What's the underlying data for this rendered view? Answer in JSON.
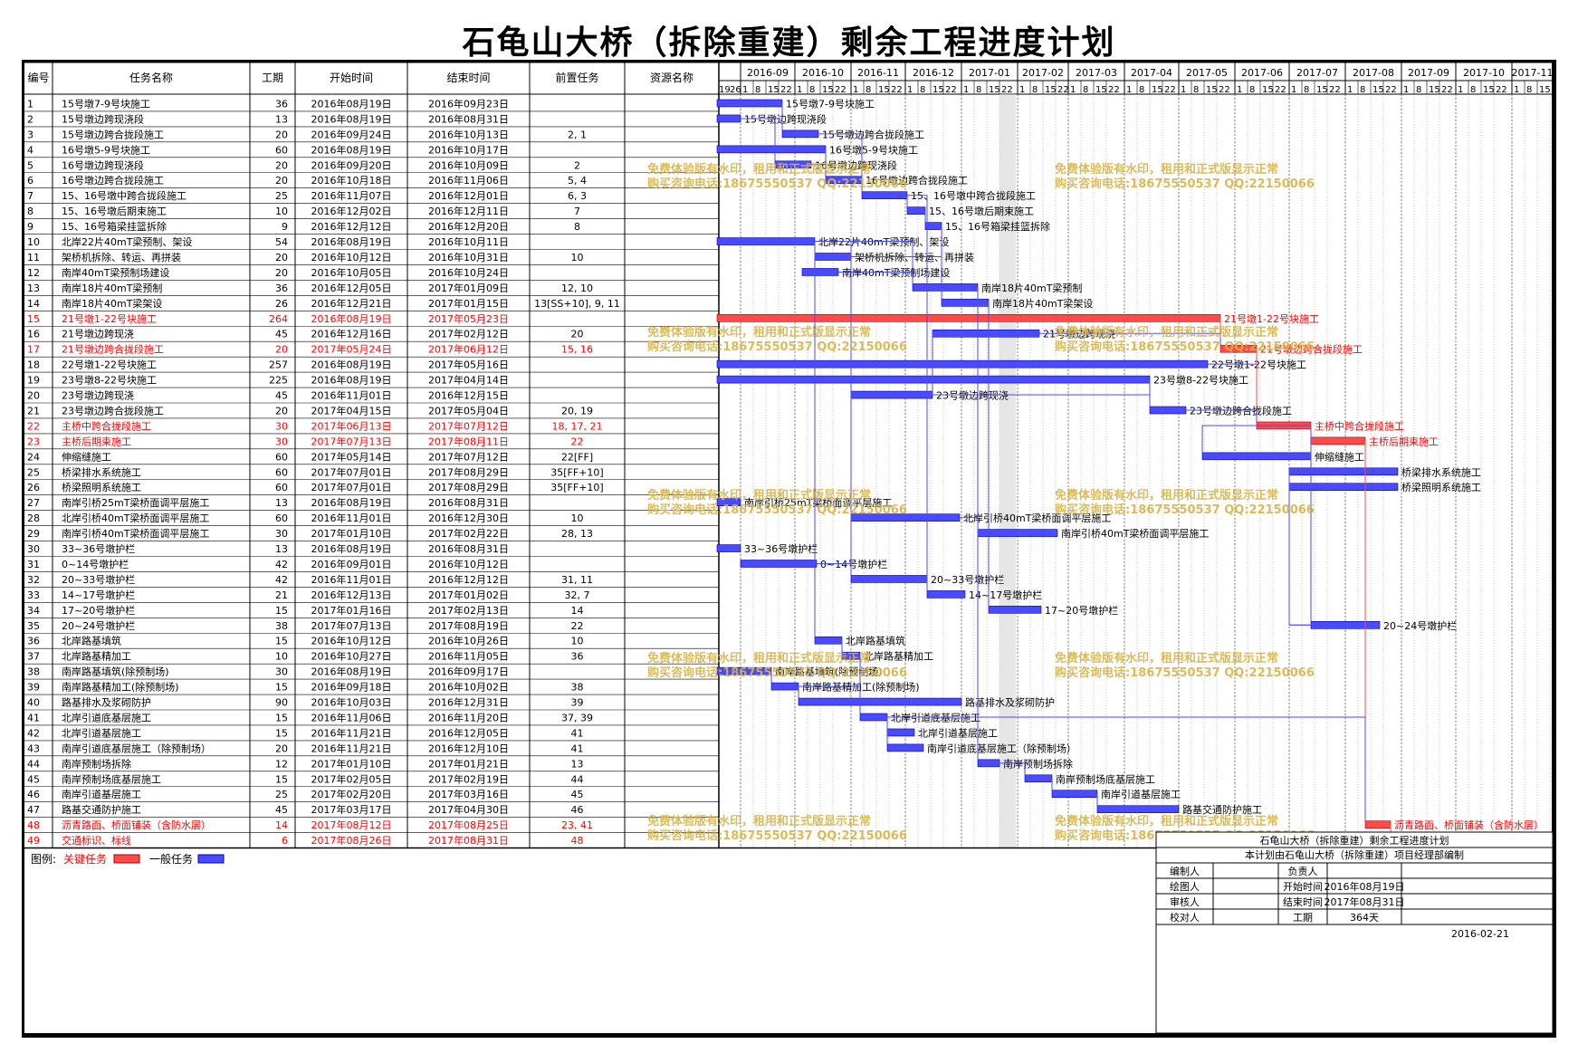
{
  "title": "石龟山大桥（拆除重建）剩余工程进度计划",
  "columns": [
    "编号",
    "任务名称",
    "工期",
    "开始时间",
    "结束时间",
    "前置任务",
    "资源名称"
  ],
  "months": [
    "2016-09",
    "2016-10",
    "2016-11",
    "2016-12",
    "2017-01",
    "2017-02",
    "2017-03",
    "2017-04",
    "2017-05",
    "2017-06",
    "2017-07",
    "2017-08",
    "2017-09",
    "2017-10",
    "2017-11"
  ],
  "first_week_labels": [
    "19",
    "26"
  ],
  "week_labels": [
    "1",
    "8",
    "15",
    "22"
  ],
  "watermark": {
    "line1": "免费体验版有水印，租用和正式版显示正常",
    "line2": "购买咨询电话:18675550537 QQ:22150066",
    "color": "#d8b448"
  },
  "colors": {
    "normal": "#4a4aff",
    "critical": "#ff4a4a",
    "normal_text": "#000000",
    "critical_text": "#ff0000"
  },
  "tasks": [
    {
      "id": "1",
      "name": "15号墩7-9号块施工",
      "dur": "36",
      "start": "2016年08月19日",
      "end": "2016年09月23日",
      "pred": "",
      "critical": false
    },
    {
      "id": "2",
      "name": "15号墩边跨现浇段",
      "dur": "13",
      "start": "2016年08月19日",
      "end": "2016年08月31日",
      "pred": "",
      "critical": false
    },
    {
      "id": "3",
      "name": "15号墩边跨合拢段施工",
      "dur": "20",
      "start": "2016年09月24日",
      "end": "2016年10月13日",
      "pred": "2, 1",
      "critical": false
    },
    {
      "id": "4",
      "name": "16号墩5-9号块施工",
      "dur": "60",
      "start": "2016年08月19日",
      "end": "2016年10月17日",
      "pred": "",
      "critical": false
    },
    {
      "id": "5",
      "name": "16号墩边跨现浇段",
      "dur": "20",
      "start": "2016年09月20日",
      "end": "2016年10月09日",
      "pred": "2",
      "critical": false
    },
    {
      "id": "6",
      "name": "16号墩边跨合拢段施工",
      "dur": "20",
      "start": "2016年10月18日",
      "end": "2016年11月06日",
      "pred": "5, 4",
      "critical": false
    },
    {
      "id": "7",
      "name": "15、16号墩中跨合拢段施工",
      "dur": "25",
      "start": "2016年11月07日",
      "end": "2016年12月01日",
      "pred": "6, 3",
      "critical": false
    },
    {
      "id": "8",
      "name": "15、16号墩后期束施工",
      "dur": "10",
      "start": "2016年12月02日",
      "end": "2016年12月11日",
      "pred": "7",
      "critical": false
    },
    {
      "id": "9",
      "name": "15、16号箱梁挂篮拆除",
      "dur": "9",
      "start": "2016年12月12日",
      "end": "2016年12月20日",
      "pred": "8",
      "critical": false
    },
    {
      "id": "10",
      "name": "北岸22片40mT梁预制、架设",
      "dur": "54",
      "start": "2016年08月19日",
      "end": "2016年10月11日",
      "pred": "",
      "critical": false
    },
    {
      "id": "11",
      "name": "架桥机拆除、转运、再拼装",
      "dur": "20",
      "start": "2016年10月12日",
      "end": "2016年10月31日",
      "pred": "10",
      "critical": false
    },
    {
      "id": "12",
      "name": "南岸40mT梁预制场建设",
      "dur": "20",
      "start": "2016年10月05日",
      "end": "2016年10月24日",
      "pred": "",
      "critical": false
    },
    {
      "id": "13",
      "name": "南岸18片40mT梁预制",
      "dur": "36",
      "start": "2016年12月05日",
      "end": "2017年01月09日",
      "pred": "12, 10",
      "critical": false
    },
    {
      "id": "14",
      "name": "南岸18片40mT梁架设",
      "dur": "26",
      "start": "2016年12月21日",
      "end": "2017年01月15日",
      "pred": "13[SS+10], 9, 11",
      "critical": false
    },
    {
      "id": "15",
      "name": "21号墩1-22号块施工",
      "dur": "264",
      "start": "2016年08月19日",
      "end": "2017年05月23日",
      "pred": "",
      "critical": true
    },
    {
      "id": "16",
      "name": "21号墩边跨现浇",
      "dur": "45",
      "start": "2016年12月16日",
      "end": "2017年02月12日",
      "pred": "20",
      "critical": false
    },
    {
      "id": "17",
      "name": "21号墩边跨合拢段施工",
      "dur": "20",
      "start": "2017年05月24日",
      "end": "2017年06月12日",
      "pred": "15, 16",
      "critical": true
    },
    {
      "id": "18",
      "name": "22号墩1-22号块施工",
      "dur": "257",
      "start": "2016年08月19日",
      "end": "2017年05月16日",
      "pred": "",
      "critical": false
    },
    {
      "id": "19",
      "name": "23号墩8-22号块施工",
      "dur": "225",
      "start": "2016年08月19日",
      "end": "2017年04月14日",
      "pred": "",
      "critical": false
    },
    {
      "id": "20",
      "name": "23号墩边跨现浇",
      "dur": "45",
      "start": "2016年11月01日",
      "end": "2016年12月15日",
      "pred": "",
      "critical": false
    },
    {
      "id": "21",
      "name": "23号墩边跨合拢段施工",
      "dur": "20",
      "start": "2017年04月15日",
      "end": "2017年05月04日",
      "pred": "20, 19",
      "critical": false
    },
    {
      "id": "22",
      "name": "主桥中跨合拢段施工",
      "dur": "30",
      "start": "2017年06月13日",
      "end": "2017年07月12日",
      "pred": "18, 17, 21",
      "critical": true
    },
    {
      "id": "23",
      "name": "主桥后期束施工",
      "dur": "30",
      "start": "2017年07月13日",
      "end": "2017年08月11日",
      "pred": "22",
      "critical": true
    },
    {
      "id": "24",
      "name": "伸缩缝施工",
      "dur": "60",
      "start": "2017年05月14日",
      "end": "2017年07月12日",
      "pred": "22[FF]",
      "critical": false
    },
    {
      "id": "25",
      "name": "桥梁排水系统施工",
      "dur": "60",
      "start": "2017年07月01日",
      "end": "2017年08月29日",
      "pred": "35[FF+10]",
      "critical": false
    },
    {
      "id": "26",
      "name": "桥梁照明系统施工",
      "dur": "60",
      "start": "2017年07月01日",
      "end": "2017年08月29日",
      "pred": "35[FF+10]",
      "critical": false
    },
    {
      "id": "27",
      "name": "南岸引桥25mT梁桥面调平层施工",
      "dur": "13",
      "start": "2016年08月19日",
      "end": "2016年08月31日",
      "pred": "",
      "critical": false
    },
    {
      "id": "28",
      "name": "北岸引桥40mT梁桥面调平层施工",
      "dur": "60",
      "start": "2016年11月01日",
      "end": "2016年12月30日",
      "pred": "10",
      "critical": false
    },
    {
      "id": "29",
      "name": "南岸引桥40mT梁桥面调平层施工",
      "dur": "30",
      "start": "2017年01月10日",
      "end": "2017年02月22日",
      "pred": "28, 13",
      "critical": false
    },
    {
      "id": "30",
      "name": "33~36号墩护栏",
      "dur": "13",
      "start": "2016年08月19日",
      "end": "2016年08月31日",
      "pred": "",
      "critical": false
    },
    {
      "id": "31",
      "name": "0~14号墩护栏",
      "dur": "42",
      "start": "2016年09月01日",
      "end": "2016年10月12日",
      "pred": "",
      "critical": false
    },
    {
      "id": "32",
      "name": "20~33号墩护栏",
      "dur": "42",
      "start": "2016年11月01日",
      "end": "2016年12月12日",
      "pred": "31, 11",
      "critical": false
    },
    {
      "id": "33",
      "name": "14~17号墩护栏",
      "dur": "21",
      "start": "2016年12月13日",
      "end": "2017年01月02日",
      "pred": "32, 7",
      "critical": false
    },
    {
      "id": "34",
      "name": "17~20号墩护栏",
      "dur": "15",
      "start": "2017年01月16日",
      "end": "2017年02月13日",
      "pred": "14",
      "critical": false
    },
    {
      "id": "35",
      "name": "20~24号墩护栏",
      "dur": "38",
      "start": "2017年07月13日",
      "end": "2017年08月19日",
      "pred": "22",
      "critical": false
    },
    {
      "id": "36",
      "name": "北岸路基填筑",
      "dur": "15",
      "start": "2016年10月12日",
      "end": "2016年10月26日",
      "pred": "10",
      "critical": false
    },
    {
      "id": "37",
      "name": "北岸路基精加工",
      "dur": "10",
      "start": "2016年10月27日",
      "end": "2016年11月05日",
      "pred": "36",
      "critical": false
    },
    {
      "id": "38",
      "name": "南岸路基填筑(除预制场)",
      "dur": "30",
      "start": "2016年08月19日",
      "end": "2016年09月17日",
      "pred": "",
      "critical": false
    },
    {
      "id": "39",
      "name": "南岸路基精加工(除预制场)",
      "dur": "15",
      "start": "2016年09月18日",
      "end": "2016年10月02日",
      "pred": "38",
      "critical": false
    },
    {
      "id": "40",
      "name": "路基排水及浆砌防护",
      "dur": "90",
      "start": "2016年10月03日",
      "end": "2016年12月31日",
      "pred": "39",
      "critical": false
    },
    {
      "id": "41",
      "name": "北岸引道底基层施工",
      "dur": "15",
      "start": "2016年11月06日",
      "end": "2016年11月20日",
      "pred": "37, 39",
      "critical": false
    },
    {
      "id": "42",
      "name": "北岸引道基层施工",
      "dur": "15",
      "start": "2016年11月21日",
      "end": "2016年12月05日",
      "pred": "41",
      "critical": false
    },
    {
      "id": "43",
      "name": "南岸引道底基层施工（除预制场）",
      "dur": "20",
      "start": "2016年11月21日",
      "end": "2016年12月10日",
      "pred": "41",
      "critical": false
    },
    {
      "id": "44",
      "name": "南岸预制场拆除",
      "dur": "12",
      "start": "2017年01月10日",
      "end": "2017年01月21日",
      "pred": "13",
      "critical": false
    },
    {
      "id": "45",
      "name": "南岸预制场底基层施工",
      "dur": "15",
      "start": "2017年02月05日",
      "end": "2017年02月19日",
      "pred": "44",
      "critical": false
    },
    {
      "id": "46",
      "name": "南岸引道基层施工",
      "dur": "25",
      "start": "2017年02月20日",
      "end": "2017年03月16日",
      "pred": "45",
      "critical": false
    },
    {
      "id": "47",
      "name": "路基交通防护施工",
      "dur": "45",
      "start": "2017年03月17日",
      "end": "2017年04月30日",
      "pred": "46",
      "critical": false
    },
    {
      "id": "48",
      "name": "沥青路面、桥面铺装（含防水层）",
      "dur": "14",
      "start": "2017年08月12日",
      "end": "2017年08月25日",
      "pred": "23, 41",
      "critical": true
    },
    {
      "id": "49",
      "name": "交通标识、标线",
      "dur": "6",
      "start": "2017年08月26日",
      "end": "2017年08月31日",
      "pred": "48",
      "critical": true
    }
  ],
  "legend": {
    "label": "图例:",
    "critical": "关键任务",
    "normal": "一般任务"
  },
  "infobox": {
    "title": "石龟山大桥（拆除重建）剩余工程进度计划",
    "subtitle": "本计划由石龟山大桥（拆除重建）项目经理部编制",
    "rows": [
      [
        "编制人",
        "",
        "负责人",
        ""
      ],
      [
        "绘图人",
        "",
        "开始时间",
        "2016年08月19日"
      ],
      [
        "审核人",
        "",
        "结束时间",
        "2017年08月31日"
      ],
      [
        "校对人",
        "",
        "工期",
        "364天"
      ]
    ],
    "date": "2016-02-21"
  }
}
